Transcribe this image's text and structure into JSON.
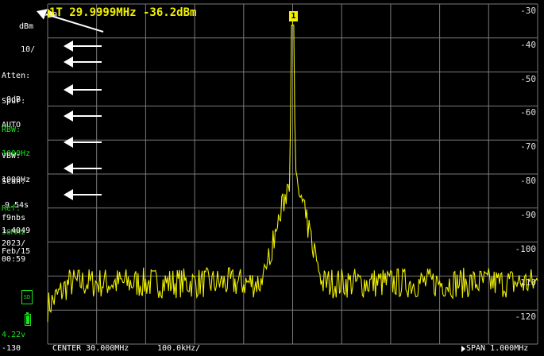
{
  "marker": {
    "readout": "1T 29.9999MHz -36.2dBm",
    "badge": "1"
  },
  "left_panel": {
    "ref_level": "-30",
    "unit": "dBm",
    "scale": "10/",
    "atten_label": "Atten:",
    "atten_value": "0dB",
    "spur_label": "Spur:",
    "spur_value": "AUTO",
    "rbw_label": "RBW:",
    "rbw_value": "1000Hz",
    "vbw_label": "VBW:",
    "vbw_value": "1000Hz",
    "scan_label": "Scan:",
    "scan_value": "9.54s",
    "ref_label": "Ref:",
    "ref_value": "30MHz",
    "device_name": "f9nbs",
    "version": "1.4049",
    "date_year": "2023/",
    "date_day": "Feb/15",
    "time": "00:59",
    "sd_label": "SD",
    "battery_voltage": "4.22v",
    "bottom_level": "-130"
  },
  "y_ticks": [
    "-30",
    "-40",
    "-50",
    "-60",
    "-70",
    "-80",
    "-90",
    "-100",
    "-110",
    "-120"
  ],
  "bottom_bar": {
    "center": "CENTER 30.000MHz",
    "per_div": "100.0kHz/",
    "span": "SPAN 1.000MHz"
  },
  "colors": {
    "trace": "#f0f000",
    "grid": "#7a7a7a",
    "green": "#19e619"
  },
  "chart_data": {
    "type": "line",
    "center_mhz": 30.0,
    "span_mhz": 1.0,
    "ylim": [
      -130,
      -30
    ],
    "peak": {
      "x_mhz": 29.9999,
      "y_dbm": -36.2
    },
    "noise_floor_dbm": -112,
    "grid": true
  }
}
